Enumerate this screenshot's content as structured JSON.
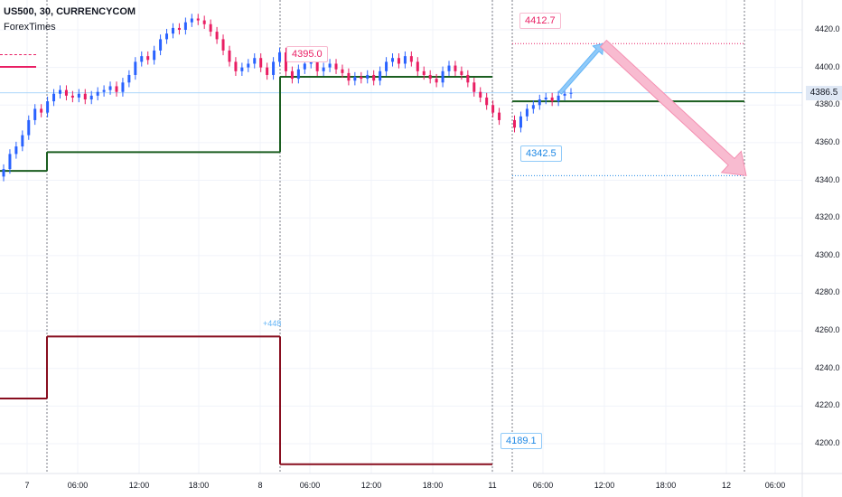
{
  "header": {
    "symbol": "US500, 30, CURRENCYCOM",
    "source": "ForexTimes"
  },
  "current_price": "4386.5",
  "callouts": {
    "upper_target": "4412.7",
    "lower_target": "4342.5",
    "prev_high": "4395.0",
    "prev_low": "4189.1",
    "range_note": "+448"
  },
  "colors": {
    "bull": "#2962ff",
    "bear": "#e91e63",
    "support": "#1b5e20",
    "resistance": "#880e1f",
    "arrow_up": "#90caf9",
    "arrow_down": "#f8bbd0",
    "grid": "#f0f3fa"
  },
  "chart_data": {
    "type": "candlestick",
    "title": "US500, 30, CURRENCYCOM",
    "yaxis": {
      "ticks": [
        4200,
        4220,
        4240,
        4260,
        4280,
        4300,
        4320,
        4340,
        4360,
        4380,
        4400,
        4420
      ],
      "ylim": [
        4188,
        4432
      ]
    },
    "xaxis": {
      "ticks": [
        "7",
        "06:00",
        "12:00",
        "18:00",
        "8",
        "06:00",
        "12:00",
        "18:00",
        "11",
        "06:00",
        "12:00",
        "18:00",
        "12",
        "06:00"
      ]
    },
    "closes": [
      4346,
      4354,
      4358,
      4364,
      4372,
      4378,
      4376,
      4382,
      4386,
      4388,
      4385,
      4384,
      4386,
      4383,
      4385,
      4387,
      4388,
      4390,
      4387,
      4392,
      4396,
      4403,
      4406,
      4404,
      4409,
      4415,
      4418,
      4421,
      4420,
      4424,
      4426,
      4425,
      4423,
      4419,
      4415,
      4409,
      4403,
      4398,
      4400,
      4402,
      4405,
      4400,
      4396,
      4403,
      4408,
      4398,
      4394,
      4399,
      4402,
      4404,
      4398,
      4400,
      4402,
      4399,
      4397,
      4393,
      4395,
      4394,
      4396,
      4393,
      4398,
      4403,
      4405,
      4402,
      4406,
      4403,
      4398,
      4396,
      4394,
      4392,
      4398,
      4401,
      4398,
      4396,
      4392,
      4387,
      4384,
      4380,
      4376,
      4372,
      4368,
      4374,
      4378,
      4380,
      4383,
      4384,
      4382,
      4385,
      4386,
      4386.5
    ],
    "levels": {
      "upper_target": 4412.7,
      "lower_target": 4342.5,
      "support": [
        {
          "from": "7 open",
          "to": "7 06:00",
          "value": 4345
        },
        {
          "from": "7 06:00",
          "to": "8 open",
          "value": 4355
        },
        {
          "from": "8 open",
          "to": "11 open",
          "value": 4395
        },
        {
          "from": "11 open",
          "to": "12 open",
          "value": 4382
        }
      ],
      "resistance": [
        {
          "from": "7 open",
          "to": "7 06:00",
          "value": 4224
        },
        {
          "from": "7 06:00",
          "to": "8 open",
          "value": 4257
        },
        {
          "from": "8 open",
          "to": "11 open",
          "value": 4189.1
        }
      ]
    },
    "forecast": [
      {
        "direction": "up",
        "from": 4386.5,
        "to": 4412.7
      },
      {
        "direction": "down",
        "from": 4412.7,
        "to": 4342.5
      }
    ]
  }
}
